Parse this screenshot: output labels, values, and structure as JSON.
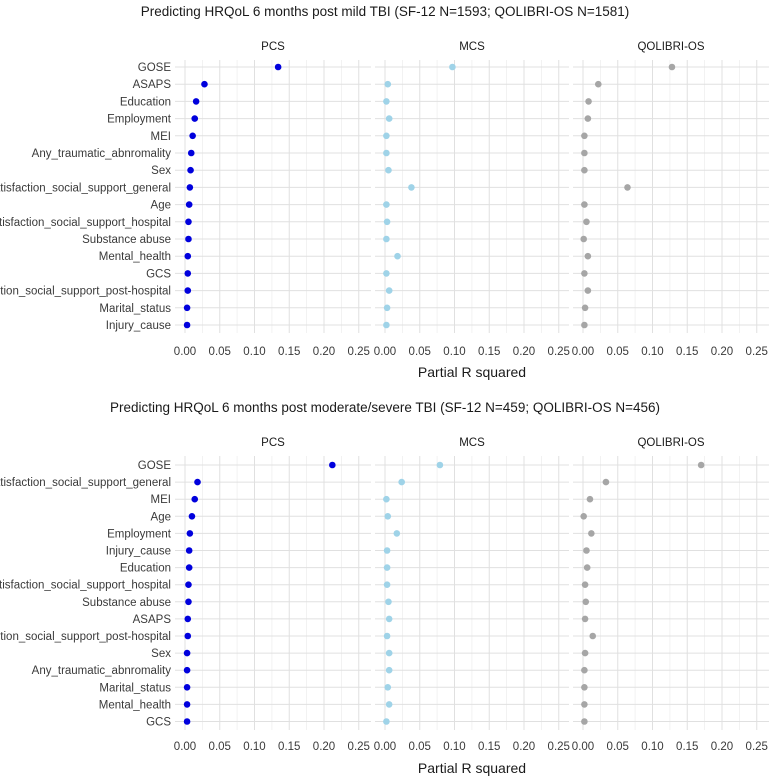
{
  "chart_data": [
    {
      "type": "scatter",
      "title": "Predicting HRQoL 6 months post mild TBI (SF-12 N=1593; QOLIBRI-OS N=1581)",
      "xlabel": "Partial R squared",
      "xlim": [
        0,
        0.26
      ],
      "xticks": [
        "0.00",
        "0.05",
        "0.10",
        "0.15",
        "0.20",
        "0.25"
      ],
      "categories": [
        "GOSE",
        "ASAPS",
        "Education",
        "Employment",
        "MEI",
        "Any_traumatic_abnromality",
        "Sex",
        "Satisfaction_social_support_general",
        "Age",
        "Satisfaction_social_support_hospital",
        "Substance abuse",
        "Mental_health",
        "GCS",
        "Satisfaction_social_support_post-hospital",
        "Marital_status",
        "Injury_cause"
      ],
      "series": [
        {
          "name": "PCS",
          "color": "#0000dd",
          "values": [
            0.134,
            0.028,
            0.016,
            0.014,
            0.011,
            0.009,
            0.008,
            0.007,
            0.006,
            0.005,
            0.005,
            0.004,
            0.004,
            0.004,
            0.003,
            0.003
          ]
        },
        {
          "name": "MCS",
          "color": "#9fd3e8",
          "values": [
            0.097,
            0.004,
            0.002,
            0.006,
            0.002,
            0.002,
            0.005,
            0.038,
            0.002,
            0.003,
            0.002,
            0.018,
            0.002,
            0.006,
            0.003,
            0.002
          ]
        },
        {
          "name": "QOLIBRI-OS",
          "color": "#a6a6a6",
          "values": [
            0.128,
            0.022,
            0.008,
            0.007,
            0.002,
            0.002,
            0.002,
            0.064,
            0.002,
            0.005,
            0.001,
            0.007,
            0.002,
            0.007,
            0.003,
            0.002
          ]
        }
      ]
    },
    {
      "type": "scatter",
      "title": "Predicting HRQoL 6 months post moderate/severe TBI (SF-12 N=459; QOLIBRI-OS N=456)",
      "xlabel": "Partial R squared",
      "xlim": [
        0,
        0.26
      ],
      "xticks": [
        "0.00",
        "0.05",
        "0.10",
        "0.15",
        "0.20",
        "0.25"
      ],
      "categories": [
        "GOSE",
        "Satisfaction_social_support_general",
        "MEI",
        "Age",
        "Employment",
        "Injury_cause",
        "Education",
        "Satisfaction_social_support_hospital",
        "Substance abuse",
        "ASAPS",
        "Satisfaction_social_support_post-hospital",
        "Sex",
        "Any_traumatic_abnromality",
        "Marital_status",
        "Mental_health",
        "GCS"
      ],
      "series": [
        {
          "name": "PCS",
          "color": "#0000dd",
          "values": [
            0.212,
            0.018,
            0.014,
            0.01,
            0.007,
            0.006,
            0.006,
            0.005,
            0.005,
            0.004,
            0.004,
            0.003,
            0.003,
            0.003,
            0.003,
            0.003
          ]
        },
        {
          "name": "MCS",
          "color": "#9fd3e8",
          "values": [
            0.079,
            0.024,
            0.002,
            0.004,
            0.017,
            0.003,
            0.003,
            0.003,
            0.005,
            0.006,
            0.003,
            0.006,
            0.006,
            0.004,
            0.006,
            0.002
          ]
        },
        {
          "name": "QOLIBRI-OS",
          "color": "#a6a6a6",
          "values": [
            0.17,
            0.033,
            0.01,
            0.001,
            0.012,
            0.005,
            0.006,
            0.003,
            0.004,
            0.003,
            0.014,
            0.003,
            0.002,
            0.002,
            0.002,
            0.002
          ]
        }
      ]
    }
  ]
}
